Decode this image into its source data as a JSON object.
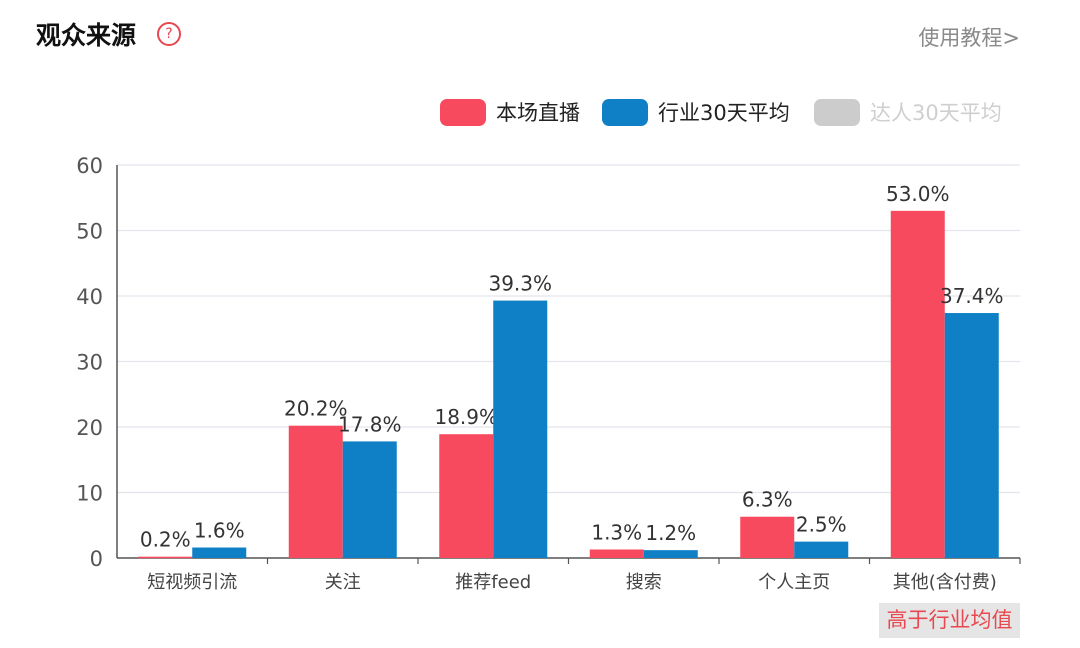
{
  "header": {
    "title": "观众来源",
    "help_icon": "question-circle-icon",
    "help_glyph": "?",
    "tutorial_link": "使用教程>"
  },
  "legend": [
    {
      "label": "本场直播",
      "color": "#f84a5e",
      "active": true
    },
    {
      "label": "行业30天平均",
      "color": "#0f80c6",
      "active": true
    },
    {
      "label": "达人30天平均",
      "color": "#cccccc",
      "active": false
    }
  ],
  "chart_data": {
    "type": "bar",
    "categories": [
      "短视频引流",
      "关注",
      "推荐feed",
      "搜索",
      "个人主页",
      "其他(含付费)"
    ],
    "series": [
      {
        "name": "本场直播",
        "values": [
          0.2,
          20.2,
          18.9,
          1.3,
          6.3,
          53.0
        ],
        "labels": [
          "0.2%",
          "20.2%",
          "18.9%",
          "1.3%",
          "6.3%",
          "53.0%"
        ],
        "color": "#f84a5e"
      },
      {
        "name": "行业30天平均",
        "values": [
          1.6,
          17.8,
          39.3,
          1.2,
          2.5,
          37.4
        ],
        "labels": [
          "1.6%",
          "17.8%",
          "39.3%",
          "1.2%",
          "2.5%",
          "37.4%"
        ],
        "color": "#0f80c6"
      }
    ],
    "ylim": [
      0,
      60
    ],
    "yticks": [
      0,
      10,
      20,
      30,
      40,
      50,
      60
    ],
    "grid": true,
    "legend_position": "top-right",
    "annotation": "高于行业均值"
  }
}
